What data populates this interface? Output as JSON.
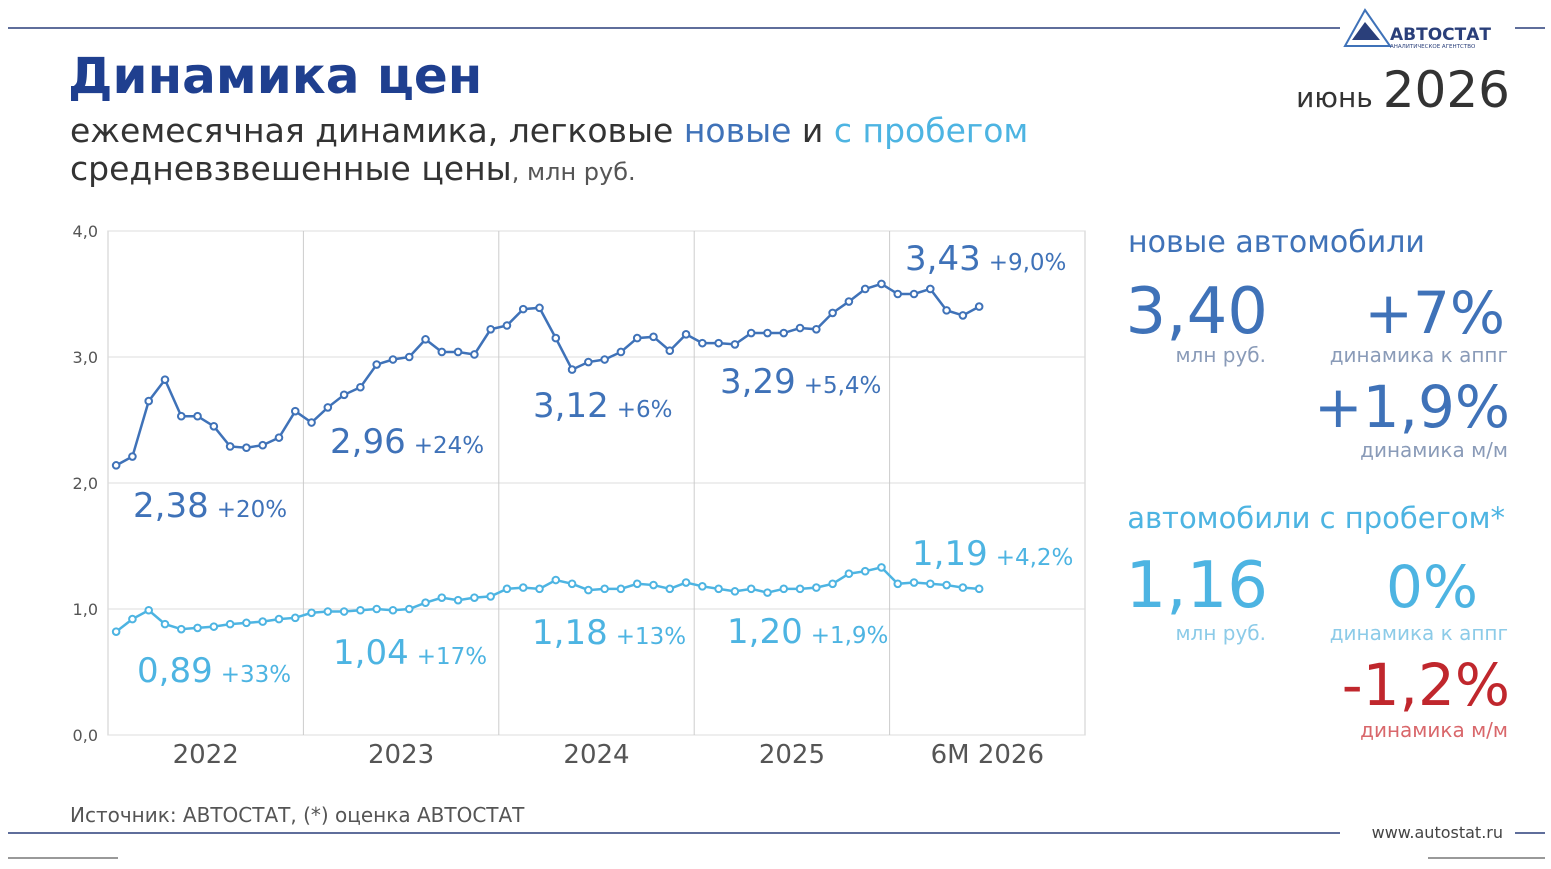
{
  "header": {
    "title": "Динамика цен",
    "subtitle_1": "ежемесячная динамика, легковые ",
    "subtitle_new": "новые",
    "subtitle_and": " и ",
    "subtitle_used": "с пробегом",
    "subtitle_2": "средневзвешенные цены",
    "subtitle_unit": ", млн руб.",
    "month": "июнь",
    "year": "2026",
    "logo": "АВТОСТАТ",
    "logo_sub": "АНАЛИТИЧЕСКОЕ АГЕНТСТВО"
  },
  "chart_data": {
    "type": "line",
    "periods": [
      "2022",
      "2023",
      "2024",
      "2025",
      "6М 2026"
    ],
    "ylim": [
      0,
      4
    ],
    "yticks": [
      {
        "value": 0,
        "label": "0,0"
      },
      {
        "value": 1,
        "label": "1,0"
      },
      {
        "value": 2,
        "label": "2,0"
      },
      {
        "value": 3,
        "label": "3,0"
      },
      {
        "value": 4,
        "label": "4,0"
      }
    ],
    "grid": true,
    "series": [
      {
        "name": "новые",
        "color": "#3f72b8",
        "values": [
          2.14,
          2.21,
          2.65,
          2.82,
          2.53,
          2.53,
          2.45,
          2.29,
          2.28,
          2.3,
          2.36,
          2.57,
          2.48,
          2.6,
          2.7,
          2.76,
          2.94,
          2.98,
          3.0,
          3.14,
          3.04,
          3.04,
          3.02,
          3.22,
          3.25,
          3.38,
          3.39,
          3.15,
          2.9,
          2.96,
          2.98,
          3.04,
          3.15,
          3.16,
          3.05,
          3.18,
          3.11,
          3.11,
          3.1,
          3.19,
          3.19,
          3.19,
          3.23,
          3.22,
          3.35,
          3.44,
          3.54,
          3.58,
          3.5,
          3.5,
          3.54,
          3.37,
          3.33,
          3.4
        ],
        "period_averages": {
          "values": [
            2.38,
            2.96,
            3.12,
            3.29,
            3.43
          ],
          "value_labels": [
            "2,38",
            "2,96",
            "3,12",
            "3,29",
            "3,43"
          ]
        },
        "period_changes": {
          "values": [
            20,
            24,
            6,
            5.4,
            9.0
          ],
          "value_labels": [
            "+20%",
            "+24%",
            "+6%",
            "+5,4%",
            "+9,0%"
          ]
        }
      },
      {
        "name": "с пробегом",
        "color": "#4db4e2",
        "values": [
          0.82,
          0.92,
          0.99,
          0.88,
          0.84,
          0.85,
          0.86,
          0.88,
          0.89,
          0.9,
          0.92,
          0.93,
          0.97,
          0.98,
          0.98,
          0.99,
          1.0,
          0.99,
          1.0,
          1.05,
          1.09,
          1.07,
          1.09,
          1.1,
          1.16,
          1.17,
          1.16,
          1.23,
          1.2,
          1.15,
          1.16,
          1.16,
          1.2,
          1.19,
          1.16,
          1.21,
          1.18,
          1.16,
          1.14,
          1.16,
          1.13,
          1.16,
          1.16,
          1.17,
          1.2,
          1.28,
          1.3,
          1.33,
          1.2,
          1.21,
          1.2,
          1.19,
          1.17,
          1.16
        ],
        "period_averages": {
          "values": [
            0.89,
            1.04,
            1.18,
            1.2,
            1.19
          ],
          "value_labels": [
            "0,89",
            "1,04",
            "1,18",
            "1,20",
            "1,19"
          ]
        },
        "period_changes": {
          "values": [
            33,
            17,
            13,
            1.9,
            4.2
          ],
          "value_labels": [
            "+33%",
            "+17%",
            "+13%",
            "+1,9%",
            "+4,2%"
          ]
        }
      }
    ]
  },
  "summary": {
    "new": {
      "title": "новые автомобили",
      "price": "3,40",
      "unit": "млн руб.",
      "yoy": "+7%",
      "yoy_label": "динамика к аппг",
      "mom": "+1,9%",
      "mom_label": "динамика м/м"
    },
    "used": {
      "title": "автомобили с пробегом*",
      "price": "1,16",
      "unit": "млн руб.",
      "yoy": "0%",
      "yoy_label": "динамика к аппг",
      "mom": "-1,2%",
      "mom_label": "динамика м/м"
    }
  },
  "footer": {
    "source": "Источник: АВТОСТАТ, (*) оценка АВТОСТАТ",
    "site": "www.autostat.ru"
  }
}
